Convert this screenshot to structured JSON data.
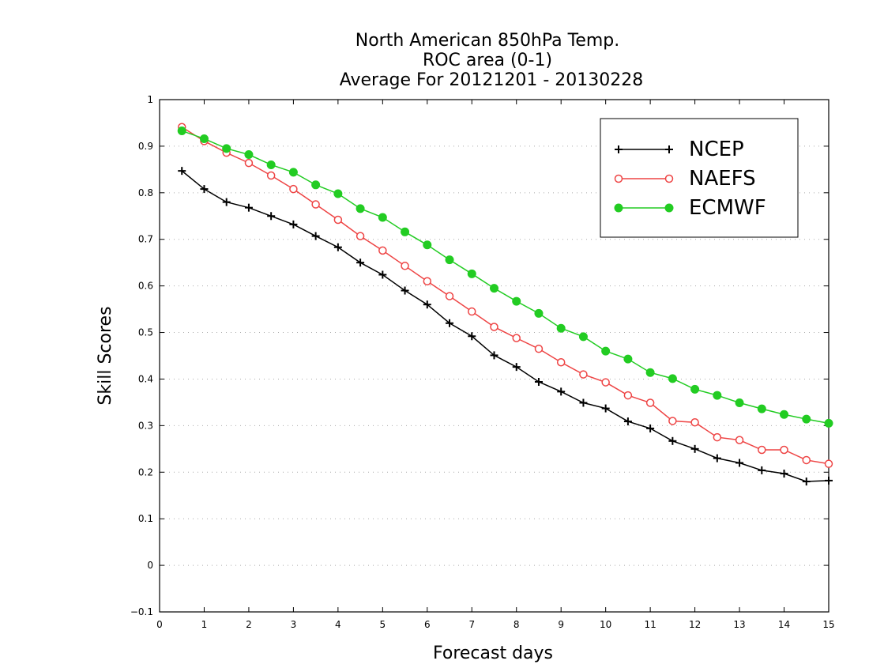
{
  "chart_data": {
    "type": "line",
    "title_lines": [
      "North American 850hPa Temp.",
      "ROC area (0-1)",
      "Average For 20121201 - 20130228"
    ],
    "xlabel": "Forecast days",
    "ylabel": "Skill Scores",
    "xlim": [
      0,
      15
    ],
    "ylim": [
      -0.1,
      1
    ],
    "x_ticks": [
      "0",
      "1",
      "2",
      "3",
      "4",
      "5",
      "6",
      "7",
      "8",
      "9",
      "10",
      "11",
      "12",
      "13",
      "14",
      "15"
    ],
    "y_ticks": [
      "−0.1",
      "0",
      "0.1",
      "0.2",
      "0.3",
      "0.4",
      "0.5",
      "0.6",
      "0.7",
      "0.8",
      "0.9",
      "1"
    ],
    "grid": "horizontal dotted",
    "legend_position": "top-right",
    "x": [
      0.5,
      1,
      1.5,
      2,
      2.5,
      3,
      3.5,
      4,
      4.5,
      5,
      5.5,
      6,
      6.5,
      7,
      7.5,
      8,
      8.5,
      9,
      9.5,
      10,
      10.5,
      11,
      11.5,
      12,
      12.5,
      13,
      13.5,
      14,
      14.5,
      15
    ],
    "series": [
      {
        "name": "NCEP",
        "color": "#000000",
        "marker": "plus",
        "values": [
          0.847,
          0.808,
          0.78,
          0.768,
          0.75,
          0.732,
          0.707,
          0.683,
          0.65,
          0.624,
          0.59,
          0.56,
          0.52,
          0.492,
          0.451,
          0.426,
          0.394,
          0.373,
          0.349,
          0.337,
          0.309,
          0.294,
          0.267,
          0.25,
          0.23,
          0.22,
          0.204,
          0.197,
          0.18,
          0.182
        ]
      },
      {
        "name": "NAEFS",
        "color": "#ee4444",
        "marker": "open-circle",
        "values": [
          0.941,
          0.911,
          0.886,
          0.864,
          0.837,
          0.808,
          0.775,
          0.742,
          0.707,
          0.676,
          0.643,
          0.61,
          0.578,
          0.545,
          0.512,
          0.488,
          0.465,
          0.436,
          0.41,
          0.393,
          0.365,
          0.349,
          0.31,
          0.307,
          0.275,
          0.269,
          0.248,
          0.248,
          0.226,
          0.218
        ]
      },
      {
        "name": "ECMWF",
        "color": "#22cc22",
        "marker": "filled-circle",
        "values": [
          0.933,
          0.916,
          0.895,
          0.882,
          0.86,
          0.844,
          0.817,
          0.798,
          0.766,
          0.747,
          0.716,
          0.688,
          0.656,
          0.626,
          0.595,
          0.567,
          0.541,
          0.509,
          0.491,
          0.46,
          0.443,
          0.414,
          0.401,
          0.378,
          0.365,
          0.349,
          0.336,
          0.324,
          0.314,
          0.305
        ]
      }
    ]
  }
}
